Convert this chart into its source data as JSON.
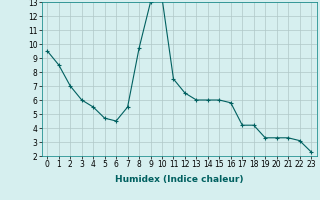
{
  "x": [
    0,
    1,
    2,
    3,
    4,
    5,
    6,
    7,
    8,
    9,
    10,
    11,
    12,
    13,
    14,
    15,
    16,
    17,
    18,
    19,
    20,
    21,
    22,
    23
  ],
  "y": [
    9.5,
    8.5,
    7.0,
    6.0,
    5.5,
    4.7,
    4.5,
    5.5,
    9.7,
    13.0,
    13.3,
    7.5,
    6.5,
    6.0,
    6.0,
    6.0,
    5.8,
    4.2,
    4.2,
    3.3,
    3.3,
    3.3,
    3.1,
    2.3
  ],
  "line_color": "#006060",
  "marker": "+",
  "marker_size": 3,
  "xlim": [
    -0.5,
    23.5
  ],
  "ylim": [
    2,
    13
  ],
  "xticks": [
    0,
    1,
    2,
    3,
    4,
    5,
    6,
    7,
    8,
    9,
    10,
    11,
    12,
    13,
    14,
    15,
    16,
    17,
    18,
    19,
    20,
    21,
    22,
    23
  ],
  "yticks": [
    2,
    3,
    4,
    5,
    6,
    7,
    8,
    9,
    10,
    11,
    12,
    13
  ],
  "xlabel": "Humidex (Indice chaleur)",
  "bg_color": "#d6efef",
  "grid_color": "#b0c8c8",
  "tick_fontsize": 5.5,
  "label_fontsize": 6.5
}
